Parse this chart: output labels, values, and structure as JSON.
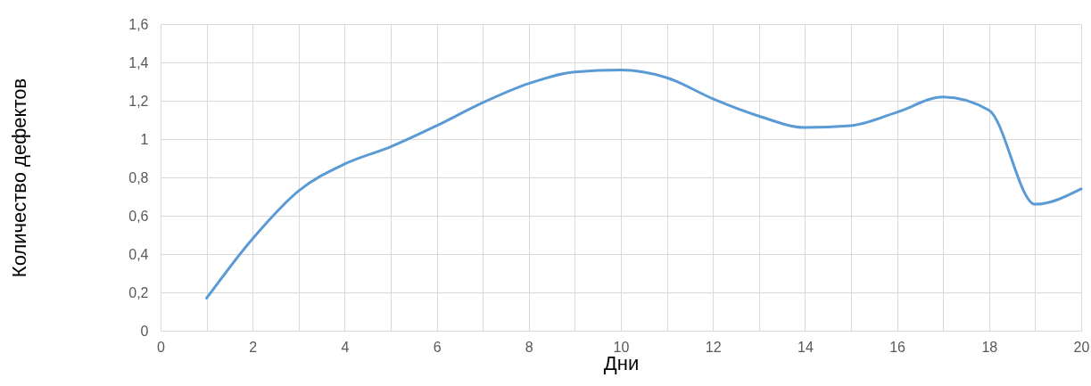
{
  "chart_data": {
    "type": "line",
    "xlabel": "Дни",
    "ylabel": "Количество дефектов",
    "x": [
      1,
      2,
      3,
      4,
      5,
      6,
      7,
      8,
      9,
      10,
      11,
      12,
      13,
      14,
      15,
      16,
      17,
      18,
      19,
      20
    ],
    "series": [
      {
        "color": "#5b9bd5",
        "values": [
          0.17,
          0.48,
          0.73,
          0.87,
          0.96,
          1.07,
          1.19,
          1.29,
          1.35,
          1.36,
          1.32,
          1.21,
          1.12,
          1.06,
          1.07,
          1.14,
          1.22,
          1.15,
          0.66,
          0.74
        ]
      }
    ],
    "xlim": [
      0,
      20
    ],
    "xticks": [
      0,
      {
        "value": 1,
        "label": null
      },
      2,
      {
        "value": 3,
        "label": null
      },
      4,
      {
        "value": 5,
        "label": null
      },
      6,
      {
        "value": 7,
        "label": null
      },
      8,
      {
        "value": 9,
        "label": null
      },
      10,
      {
        "value": 11,
        "label": null
      },
      12,
      {
        "value": 13,
        "label": null
      },
      14,
      {
        "value": 15,
        "label": null
      },
      16,
      {
        "value": 17,
        "label": null
      },
      18,
      {
        "value": 19,
        "label": null
      },
      20
    ],
    "ylim": [
      0,
      1.6
    ],
    "yticks": [
      0,
      {
        "value": 0.2,
        "label": "0,2"
      },
      {
        "value": 0.4,
        "label": "0,4"
      },
      {
        "value": 0.6,
        "label": "0,6"
      },
      {
        "value": 0.8,
        "label": "0,8"
      },
      1,
      {
        "value": 1.2,
        "label": "1,2"
      },
      {
        "value": 1.4,
        "label": "1,4"
      },
      {
        "value": 1.6,
        "label": "1,6"
      }
    ],
    "grid": true,
    "marker": "none",
    "line_style": "solid"
  }
}
